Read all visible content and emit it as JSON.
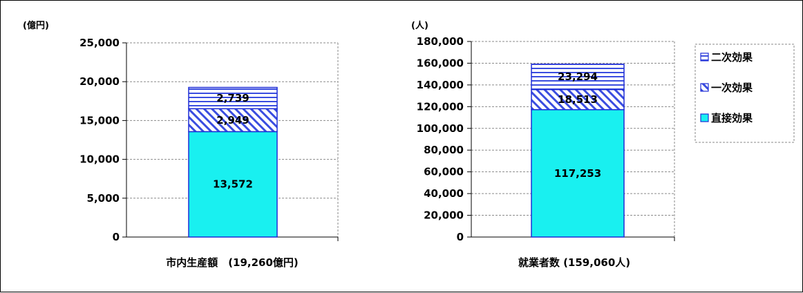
{
  "chart_data": [
    {
      "type": "bar",
      "stacked": true,
      "unit_label": "(億円)",
      "categories": [
        "市内生産額　(19,260億円)"
      ],
      "ylim": [
        0,
        25000
      ],
      "y_ticks": [
        "0",
        "5,000",
        "10,000",
        "15,000",
        "20,000",
        "25,000"
      ],
      "grid": true,
      "series": [
        {
          "name": "直接効果",
          "values": [
            13572
          ],
          "labels": [
            "13,572"
          ]
        },
        {
          "name": "一次効果",
          "values": [
            2949
          ],
          "labels": [
            "2,949"
          ]
        },
        {
          "name": "二次効果",
          "values": [
            2739
          ],
          "labels": [
            "2,739"
          ]
        }
      ]
    },
    {
      "type": "bar",
      "stacked": true,
      "unit_label": "(人)",
      "categories": [
        "就業者数 (159,060人)"
      ],
      "ylim": [
        0,
        180000
      ],
      "y_ticks": [
        "0",
        "20,000",
        "40,000",
        "60,000",
        "80,000",
        "100,000",
        "120,000",
        "140,000",
        "160,000",
        "180,000"
      ],
      "grid": true,
      "series": [
        {
          "name": "直接効果",
          "values": [
            117253
          ],
          "labels": [
            "117,253"
          ]
        },
        {
          "name": "一次効果",
          "values": [
            18513
          ],
          "labels": [
            "18,513"
          ]
        },
        {
          "name": "二次効果",
          "values": [
            23294
          ],
          "labels": [
            "23,294"
          ]
        }
      ]
    }
  ],
  "legend": {
    "placement": "right",
    "items": [
      {
        "label": "二次効果",
        "pattern": "horizontal-stripes"
      },
      {
        "label": "一次効果",
        "pattern": "diagonal"
      },
      {
        "label": "直接効果",
        "pattern": "solid"
      }
    ]
  },
  "colors": {
    "direct": "#19f0f0",
    "pattern": "#3a4de0",
    "border": "#1f2dd6"
  }
}
